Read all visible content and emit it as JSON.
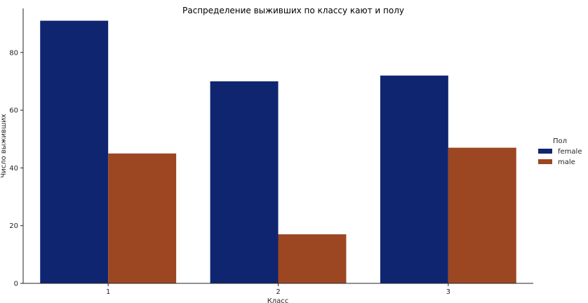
{
  "chart_data": {
    "type": "bar",
    "title": "Распределение выживших по классу кают и полу",
    "xlabel": "Класс",
    "ylabel": "Число выживших",
    "categories": [
      "1",
      "2",
      "3"
    ],
    "series": [
      {
        "name": "female",
        "color": "#0f2570",
        "values": [
          91,
          70,
          72
        ]
      },
      {
        "name": "male",
        "color": "#9c4721",
        "values": [
          45,
          17,
          47
        ]
      }
    ],
    "ylim": [
      0,
      95.6
    ],
    "yticks": [
      0,
      20,
      40,
      60,
      80
    ],
    "legend": {
      "title": "Пол",
      "placement": "right"
    },
    "grid": false
  }
}
